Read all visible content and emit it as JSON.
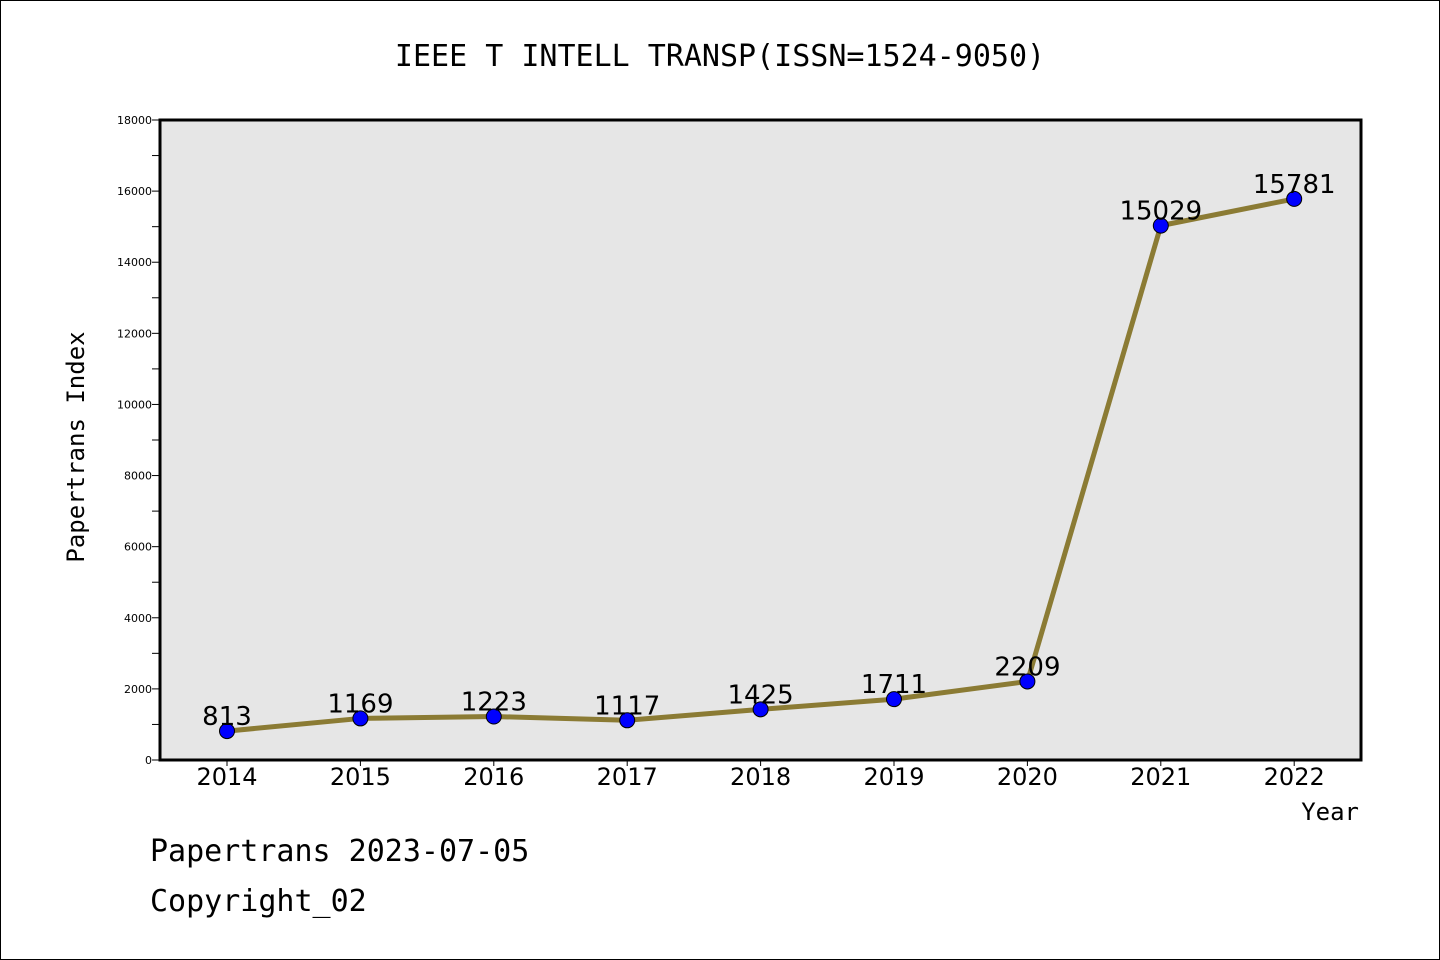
{
  "chart_data": {
    "type": "line",
    "title": "IEEE T INTELL TRANSP(ISSN=1524-9050)",
    "xlabel": "Year",
    "ylabel": "Papertrans Index",
    "categories": [
      "2014",
      "2015",
      "2016",
      "2017",
      "2018",
      "2019",
      "2020",
      "2021",
      "2022"
    ],
    "values": [
      813,
      1169,
      1223,
      1117,
      1425,
      1711,
      2209,
      15029,
      15781
    ],
    "ylim": [
      0,
      18000
    ],
    "yticks": [
      0,
      2000,
      4000,
      6000,
      8000,
      10000,
      12000,
      14000,
      16000,
      18000
    ],
    "grid": false,
    "line_color": "#8B7B34",
    "marker_color": "#0000FF",
    "plot_background": "#E6E6E6"
  },
  "footer": {
    "date_line": "Papertrans 2023-07-05",
    "copyright": "Copyright_02"
  }
}
